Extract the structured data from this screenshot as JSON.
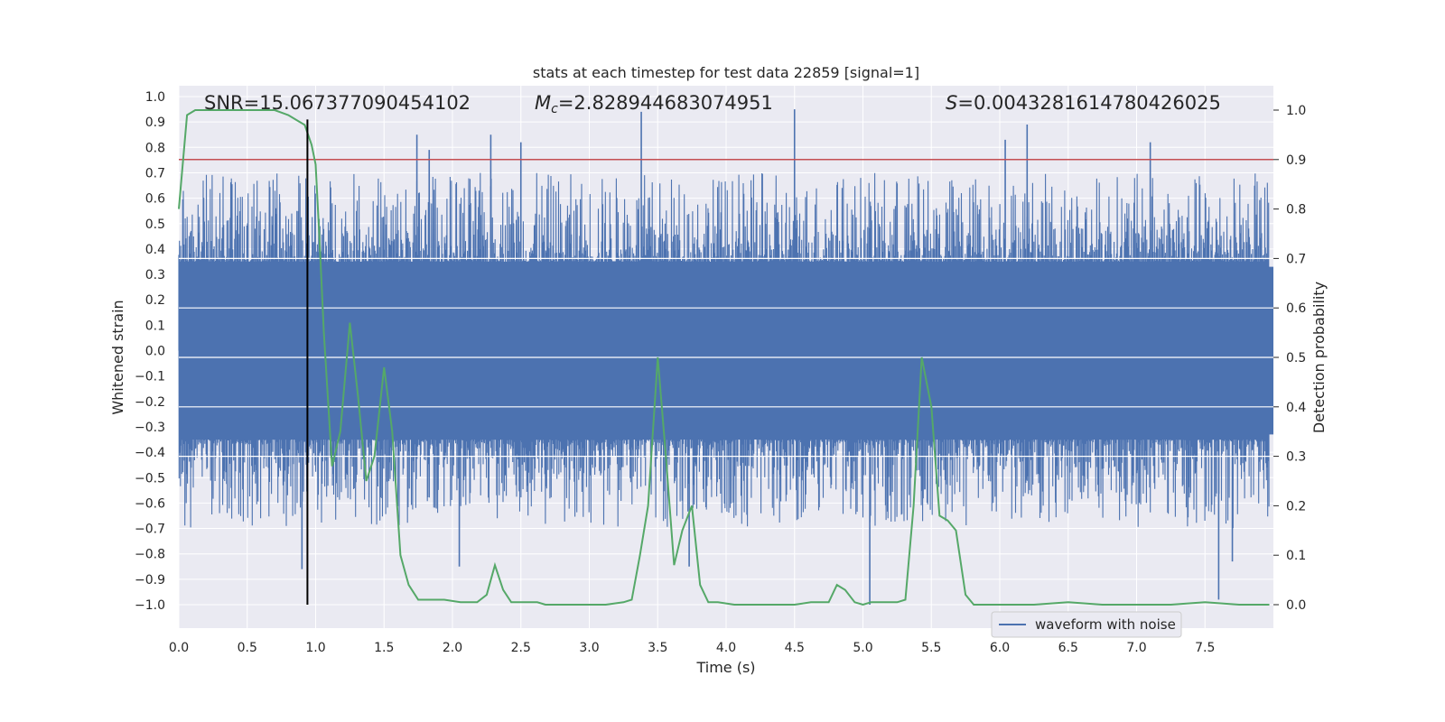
{
  "chart_data": {
    "type": "line",
    "title": "stats at each timestep for test data 22859 [signal=1]",
    "xlabel": "Time (s)",
    "ylabel": "Whitened strain",
    "ylabel_right": "Detection probability",
    "xlim": [
      0.0,
      8.0
    ],
    "ylim": [
      -1.1,
      1.05
    ],
    "ylim_right": [
      -0.05,
      1.03
    ],
    "x_ticks": [
      "0.0",
      "0.5",
      "1.0",
      "1.5",
      "2.0",
      "2.5",
      "3.0",
      "3.5",
      "4.0",
      "4.5",
      "5.0",
      "5.5",
      "6.0",
      "6.5",
      "7.0",
      "7.5"
    ],
    "y_ticks": [
      "1.0",
      "0.9",
      "0.8",
      "0.7",
      "0.6",
      "0.5",
      "0.4",
      "0.3",
      "0.2",
      "0.1",
      "0.0",
      "−0.1",
      "−0.2",
      "−0.3",
      "−0.4",
      "−0.5",
      "−0.6",
      "−0.7",
      "−0.8",
      "−0.9",
      "−1.0"
    ],
    "y_ticks_right": [
      "1.0",
      "0.9",
      "0.8",
      "0.7",
      "0.6",
      "0.5",
      "0.4",
      "0.3",
      "0.2",
      "0.1",
      "0.0"
    ],
    "grid": true,
    "legend_position": "lower-right",
    "annotations": {
      "snr": "SNR=15.067377090454102",
      "mc_symbol": "M",
      "mc_sub": "c",
      "mc_value": "=2.828944683074951",
      "s_symbol": "S",
      "s_value": "=0.004328161478042602 5"
    },
    "series": [
      {
        "name": "waveform with noise",
        "color": "#4c72b0",
        "description_values": "dense noise, amplitude envelope roughly -0.6..0.6 with spikes",
        "spikes": [
          {
            "x": 1.74,
            "y": 0.85
          },
          {
            "x": 1.83,
            "y": 0.79
          },
          {
            "x": 2.28,
            "y": 0.85
          },
          {
            "x": 2.5,
            "y": 0.82
          },
          {
            "x": 3.38,
            "y": 0.94
          },
          {
            "x": 4.5,
            "y": 0.95
          },
          {
            "x": 6.04,
            "y": 0.83
          },
          {
            "x": 6.2,
            "y": 0.89
          },
          {
            "x": 7.1,
            "y": 0.82
          },
          {
            "x": 0.9,
            "y": -0.86
          },
          {
            "x": 2.05,
            "y": -0.85
          },
          {
            "x": 5.05,
            "y": -1.0
          },
          {
            "x": 7.6,
            "y": -0.98
          },
          {
            "x": 7.7,
            "y": -0.83
          },
          {
            "x": 3.73,
            "y": -0.85
          }
        ]
      },
      {
        "name": "",
        "color": "#55a868",
        "axis": "right",
        "x": [
          0.0,
          0.06,
          0.12,
          0.2,
          0.3,
          0.4,
          0.5,
          0.6,
          0.7,
          0.8,
          0.86,
          0.92,
          0.97,
          1.0,
          1.03,
          1.06,
          1.12,
          1.18,
          1.25,
          1.31,
          1.37,
          1.43,
          1.5,
          1.56,
          1.62,
          1.68,
          1.75,
          1.87,
          1.94,
          2.06,
          2.12,
          2.18,
          2.25,
          2.31,
          2.37,
          2.43,
          2.5,
          2.56,
          2.62,
          2.68,
          2.75,
          2.87,
          3.0,
          3.12,
          3.25,
          3.31,
          3.37,
          3.43,
          3.5,
          3.56,
          3.62,
          3.68,
          3.75,
          3.81,
          3.87,
          3.94,
          4.06,
          4.12,
          4.25,
          4.37,
          4.5,
          4.62,
          4.75,
          4.81,
          4.87,
          4.94,
          5.0,
          5.06,
          5.12,
          5.25,
          5.31,
          5.37,
          5.43,
          5.5,
          5.56,
          5.62,
          5.68,
          5.75,
          5.81,
          5.87,
          6.0,
          6.25,
          6.5,
          6.75,
          7.0,
          7.25,
          7.5,
          7.75,
          7.97
        ],
        "y": [
          0.8,
          0.99,
          1.0,
          1.0,
          1.0,
          1.0,
          1.0,
          1.0,
          1.0,
          0.99,
          0.98,
          0.97,
          0.93,
          0.89,
          0.73,
          0.55,
          0.28,
          0.35,
          0.57,
          0.42,
          0.25,
          0.3,
          0.48,
          0.35,
          0.1,
          0.04,
          0.01,
          0.01,
          0.01,
          0.005,
          0.005,
          0.005,
          0.02,
          0.08,
          0.03,
          0.005,
          0.005,
          0.005,
          0.005,
          0.0,
          0.0,
          0.0,
          0.0,
          0.0,
          0.005,
          0.01,
          0.1,
          0.2,
          0.5,
          0.3,
          0.08,
          0.15,
          0.2,
          0.04,
          0.005,
          0.005,
          0.0,
          0.0,
          0.0,
          0.0,
          0.0,
          0.005,
          0.005,
          0.04,
          0.03,
          0.005,
          0.0,
          0.005,
          0.005,
          0.005,
          0.01,
          0.2,
          0.5,
          0.4,
          0.18,
          0.17,
          0.15,
          0.02,
          0.0,
          0.0,
          0.0,
          0.0,
          0.005,
          0.0,
          0.0,
          0.0,
          0.005,
          0.0,
          0.0
        ]
      }
    ],
    "reference_lines": [
      {
        "orientation": "horizontal",
        "axis": "right",
        "value": 0.9,
        "color": "#c44e52"
      },
      {
        "orientation": "vertical",
        "value": 0.94,
        "y_from": -1.0,
        "y_to": 0.91,
        "color": "#000000"
      }
    ]
  }
}
